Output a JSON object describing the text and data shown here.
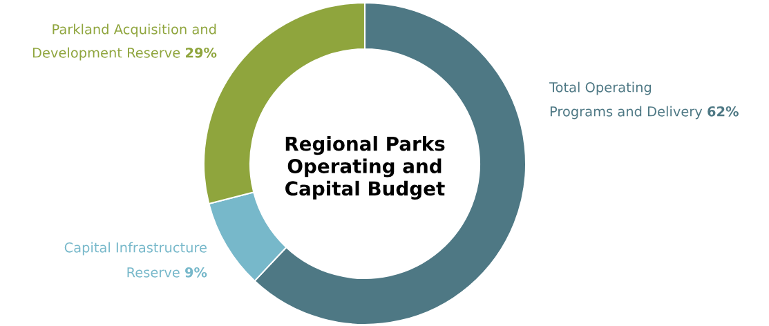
{
  "chart_data": {
    "type": "donut",
    "title": "Regional Parks\nOperating and\nCapital Budget",
    "categories": [
      "Total Operating\nPrograms and Delivery",
      "Capital Infrastructure\nReserve",
      "Parkland Acquisition and\nDevelopment Reserve"
    ],
    "values": [
      62,
      9,
      29
    ],
    "value_labels": [
      "62%",
      "9%",
      "29%"
    ],
    "colors": [
      "#4e7884",
      "#77b8ca",
      "#8fa53d"
    ],
    "legend": false
  }
}
